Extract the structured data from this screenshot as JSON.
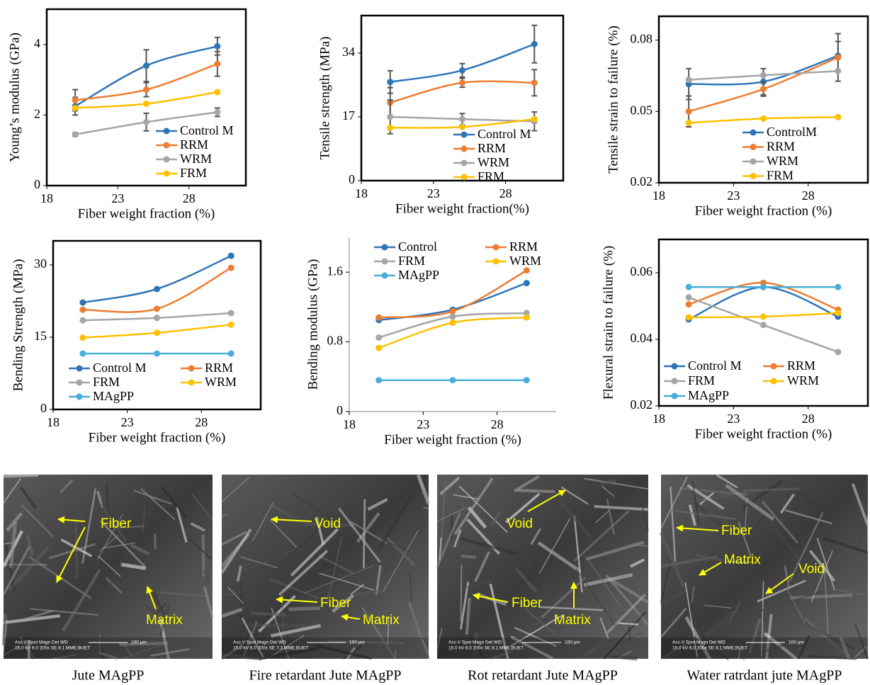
{
  "chart_data": [
    {
      "type": "line",
      "x": [
        20,
        25,
        30
      ],
      "xlim": [
        18,
        32
      ],
      "xticks": [
        18,
        23,
        28
      ],
      "ylim": [
        0,
        5
      ],
      "yticks": [
        0,
        2,
        4
      ],
      "y_label": "Young’s modulus (GPa)",
      "x_label": "Fiber weight fraction (%)",
      "legend": "lower right",
      "series": [
        {
          "name": "Control M",
          "color": "#2e75b6",
          "values": [
            2.25,
            3.4,
            3.95
          ],
          "errors": [
            0.25,
            0.45,
            0.25
          ]
        },
        {
          "name": "RRM",
          "color": "#ed7d31",
          "values": [
            2.42,
            2.72,
            3.45
          ],
          "errors": [
            0.3,
            0.2,
            0.35
          ]
        },
        {
          "name": "WRM",
          "color": "#a5a5a5",
          "values": [
            1.45,
            1.8,
            2.08
          ],
          "errors": [
            0.05,
            0.25,
            0.12
          ]
        },
        {
          "name": "FRM",
          "color": "#ffc000",
          "values": [
            2.2,
            2.32,
            2.65
          ]
        }
      ]
    },
    {
      "type": "line",
      "x": [
        20,
        25,
        30
      ],
      "xlim": [
        18,
        32
      ],
      "xticks": [
        18,
        23,
        28
      ],
      "ylim": [
        0,
        44
      ],
      "yticks": [
        0,
        17,
        34
      ],
      "y_label": "Tensile strength (MPa)",
      "x_label": "Fiber weight fraction(%)",
      "legend": "lower right",
      "series": [
        {
          "name": "Control M",
          "color": "#2e75b6",
          "values": [
            26.3,
            29.4,
            36.4
          ],
          "errors": [
            3,
            1.8,
            5
          ]
        },
        {
          "name": "RRM",
          "color": "#ed7d31",
          "values": [
            20.8,
            26.1,
            26.1
          ],
          "errors": [
            4,
            1.2,
            3.5
          ]
        },
        {
          "name": "WRM",
          "color": "#a5a5a5",
          "values": [
            17,
            16.4,
            15.8
          ],
          "errors": [
            4.5,
            1.5,
            2.5
          ]
        },
        {
          "name": "FRM",
          "color": "#ffc000",
          "values": [
            14.1,
            14.3,
            16.4
          ]
        }
      ]
    },
    {
      "type": "line",
      "x": [
        20,
        25,
        30
      ],
      "xlim": [
        18,
        32
      ],
      "xticks": [
        18,
        23,
        28
      ],
      "ylim": [
        0.02,
        0.09
      ],
      "yticks": [
        0.02,
        0.05,
        0.08
      ],
      "y_label": "Tensile strain to failure (%)",
      "x_label": "Fiber weight fraction (%)",
      "legend": "lower right",
      "series": [
        {
          "name": "ControlM",
          "color": "#2e75b6",
          "values": [
            0.0615,
            0.0625,
            0.0734
          ],
          "errors": [
            0.0065,
            0.0055,
            0.006
          ]
        },
        {
          "name": "RRM",
          "color": "#ed7d31",
          "values": [
            0.05,
            0.0594,
            0.0727
          ],
          "errors": [
            0.0065,
            0.003,
            0.01
          ]
        },
        {
          "name": "WRM",
          "color": "#a5a5a5",
          "values": [
            0.0633,
            0.0652,
            0.067
          ]
        },
        {
          "name": "FRM",
          "color": "#ffc000",
          "values": [
            0.0452,
            0.047,
            0.0476
          ]
        }
      ]
    },
    {
      "type": "line",
      "x": [
        20,
        25,
        30
      ],
      "xlim": [
        18,
        32
      ],
      "xticks": [
        18,
        23,
        28
      ],
      "ylim": [
        0,
        35
      ],
      "yticks": [
        0,
        15,
        30
      ],
      "y_label": "Bending Strength (MPa)",
      "x_label": "Fiber weight fraction (%)",
      "legend": "bottom",
      "series": [
        {
          "name": "Control M",
          "color": "#2e75b6",
          "values": [
            22.2,
            25,
            31.9
          ]
        },
        {
          "name": "RRM",
          "color": "#ed7d31",
          "values": [
            20.7,
            20.9,
            29.4
          ]
        },
        {
          "name": "FRM",
          "color": "#a5a5a5",
          "values": [
            18.5,
            19,
            20
          ]
        },
        {
          "name": "WRM",
          "color": "#ffc000",
          "values": [
            14.9,
            15.9,
            17.6
          ]
        },
        {
          "name": "MAgPP",
          "color": "#4baed8",
          "values": [
            11.6,
            11.6,
            11.6
          ]
        }
      ]
    },
    {
      "type": "line",
      "x": [
        20,
        25,
        30
      ],
      "xlim": [
        18,
        32
      ],
      "xticks": [
        18,
        23,
        28
      ],
      "ylim": [
        0,
        2
      ],
      "yticks": [
        0,
        0.8,
        1.6
      ],
      "y_label": "Bending modulus (GPa)",
      "x_label": "Fiber weight fraction (%)",
      "legend": "top",
      "series": [
        {
          "name": "Control",
          "color": "#2e75b6",
          "values": [
            1.05,
            1.17,
            1.475
          ]
        },
        {
          "name": "RRM",
          "color": "#ed7d31",
          "values": [
            1.08,
            1.15,
            1.62
          ]
        },
        {
          "name": "FRM",
          "color": "#a5a5a5",
          "values": [
            0.85,
            1.09,
            1.13
          ]
        },
        {
          "name": "WRM",
          "color": "#ffc000",
          "values": [
            0.73,
            1.02,
            1.08
          ]
        },
        {
          "name": "MAgPP",
          "color": "#4baed8",
          "values": [
            0.36,
            0.36,
            0.36
          ]
        }
      ]
    },
    {
      "type": "line",
      "x": [
        20,
        25,
        30
      ],
      "xlim": [
        18,
        32
      ],
      "xticks": [
        18,
        23,
        28
      ],
      "ylim": [
        0.02,
        0.07
      ],
      "yticks": [
        0.02,
        0.04,
        0.06
      ],
      "y_label": "Flexural strain to failure (%)",
      "x_label": "Fiber weight fraction (%)",
      "legend": "bottom",
      "series": [
        {
          "name": "Control M",
          "color": "#2e75b6",
          "values": [
            0.046,
            0.0557,
            0.0468
          ]
        },
        {
          "name": "RRM",
          "color": "#ed7d31",
          "values": [
            0.0505,
            0.057,
            0.0489
          ]
        },
        {
          "name": "FRM",
          "color": "#a5a5a5",
          "values": [
            0.0526,
            0.0443,
            0.0362
          ]
        },
        {
          "name": "WRM",
          "color": "#ffc000",
          "values": [
            0.0466,
            0.0468,
            0.0479
          ]
        },
        {
          "name": "MAgPP",
          "color": "#4baed8",
          "values": [
            0.0557,
            0.0557,
            0.0557
          ]
        }
      ]
    }
  ],
  "figures": [
    {
      "caption": "Jute MAgPP",
      "labels": [
        "Fiber",
        "Matrix"
      ],
      "info": [
        "Acc.V  Spot Magn   Det  WD",
        "15.0 kV 6.0  200x    SE   8.1   MME.BUET"
      ],
      "scale": "100 µm"
    },
    {
      "caption": "Fire retardant Jute MAgPP",
      "labels": [
        "Void",
        "Fiber",
        "Matrix"
      ],
      "info": [
        "Acc.V  Spot Magn   Det  WD",
        "15.0 kV 6.0  200x    SE   7.3   MME.BUET"
      ],
      "scale": "100 µm"
    },
    {
      "caption": "Rot retardant Jute MAgPP",
      "labels": [
        "Void",
        "Fiber",
        "Matrix"
      ],
      "info": [
        "Acc.V  Spot Magn   Det  WD",
        "15.0 kV 6.0  200x    SE   8.1   MME.BUET"
      ],
      "scale": "100 µm"
    },
    {
      "caption": "Water ratrdant jute MAgPP",
      "labels": [
        "Fiber",
        "Matrix",
        "Void"
      ],
      "info": [
        "Acc.V  Spot Magn   Det  WD",
        "15.0 kV 6.0  200x    SE   8.1   MME.BUET"
      ],
      "scale": "100 µm"
    }
  ]
}
